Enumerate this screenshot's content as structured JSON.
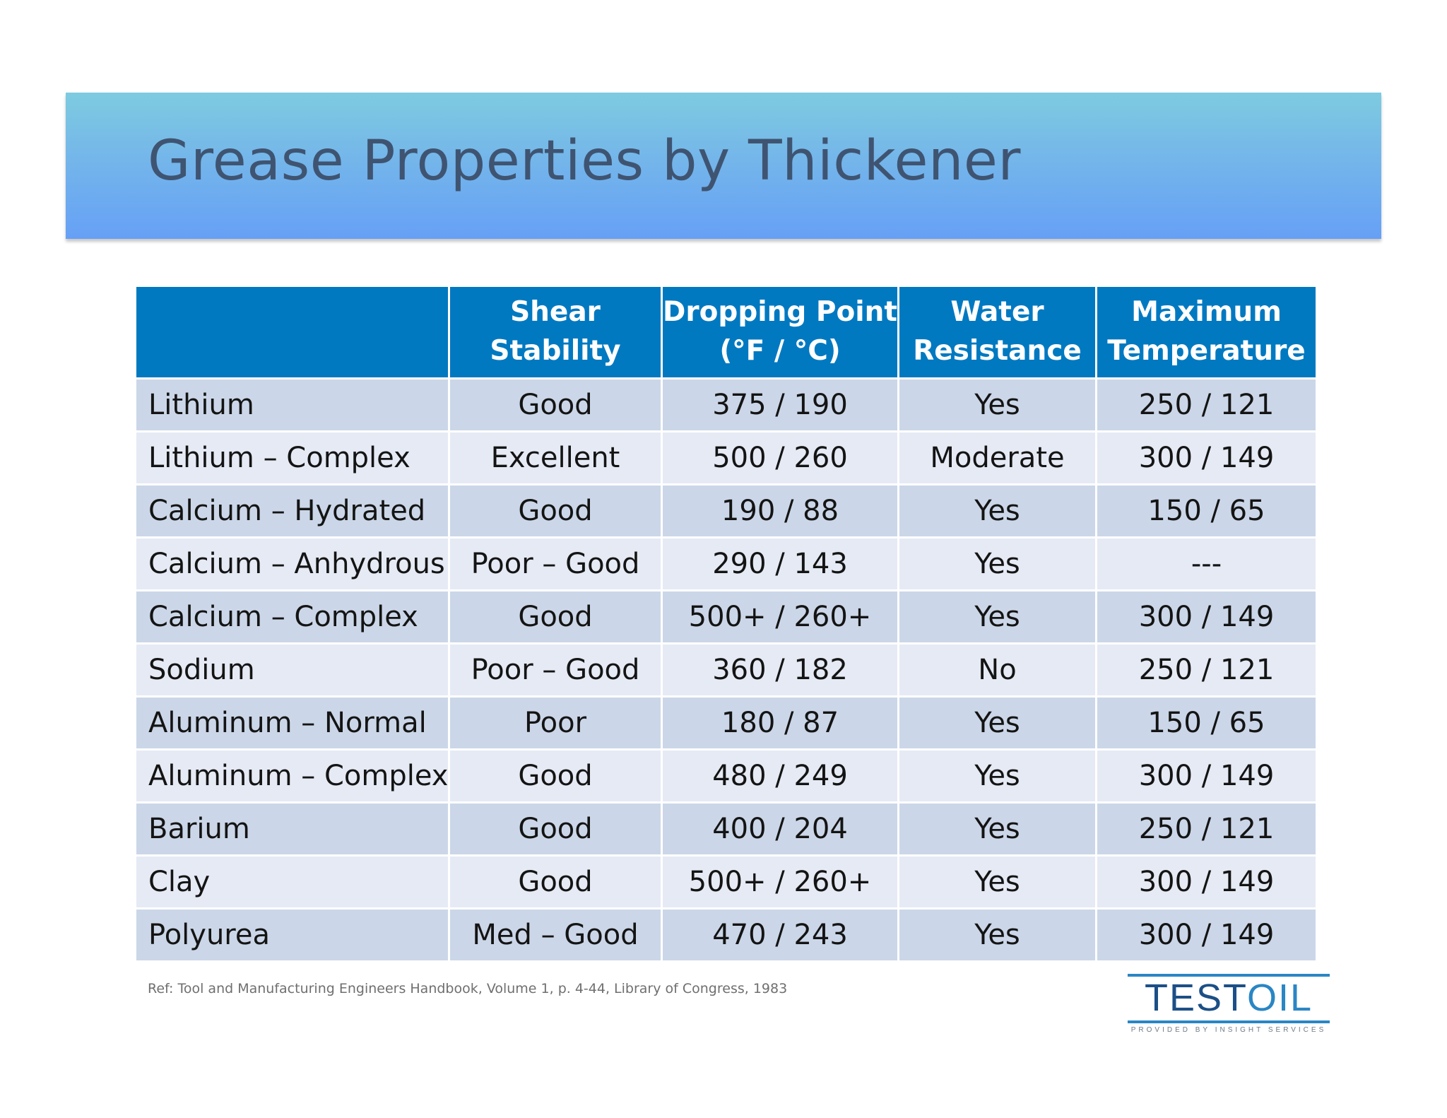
{
  "slide": {
    "title": "Grease Properties by Thickener",
    "reference": "Ref: Tool and Manufacturing Engineers Handbook,  Volume 1, p. 4-44, Library of Congress, 1983"
  },
  "table": {
    "headers": [
      {
        "line1": "",
        "line2": ""
      },
      {
        "line1": "Shear",
        "line2": "Stability"
      },
      {
        "line1": "Dropping Point",
        "line2": "(°F / °C)"
      },
      {
        "line1": "Water",
        "line2": "Resistance"
      },
      {
        "line1": "Maximum",
        "line2": "Temperature"
      }
    ],
    "rows": [
      [
        "Lithium",
        "Good",
        "375 / 190",
        "Yes",
        "250 / 121"
      ],
      [
        "Lithium – Complex",
        "Excellent",
        "500 / 260",
        "Moderate",
        "300 / 149"
      ],
      [
        "Calcium – Hydrated",
        "Good",
        "190 / 88",
        "Yes",
        "150 / 65"
      ],
      [
        "Calcium – Anhydrous",
        "Poor – Good",
        "290 / 143",
        "Yes",
        "---"
      ],
      [
        "Calcium – Complex",
        "Good",
        "500+ / 260+",
        "Yes",
        "300 / 149"
      ],
      [
        "Sodium",
        "Poor – Good",
        "360 / 182",
        "No",
        "250 / 121"
      ],
      [
        "Aluminum – Normal",
        "Poor",
        "180 / 87",
        "Yes",
        "150 / 65"
      ],
      [
        "Aluminum – Complex",
        "Good",
        "480 / 249",
        "Yes",
        "300 / 149"
      ],
      [
        "Barium",
        "Good",
        "400 / 204",
        "Yes",
        "250 / 121"
      ],
      [
        "Clay",
        "Good",
        "500+ / 260+",
        "Yes",
        "300 / 149"
      ],
      [
        "Polyurea",
        "Med – Good",
        "470 / 243",
        "Yes",
        "300 / 149"
      ]
    ]
  },
  "logo": {
    "brand_part1": "TEST",
    "brand_part2": "OIL",
    "tagline": "PROVIDED BY INSIGHT SERVICES"
  },
  "colors": {
    "header_blue": "#0079c1",
    "row_dark": "#cbd7e8",
    "row_light": "#e5eaf4",
    "title_text": "#3f5471"
  }
}
